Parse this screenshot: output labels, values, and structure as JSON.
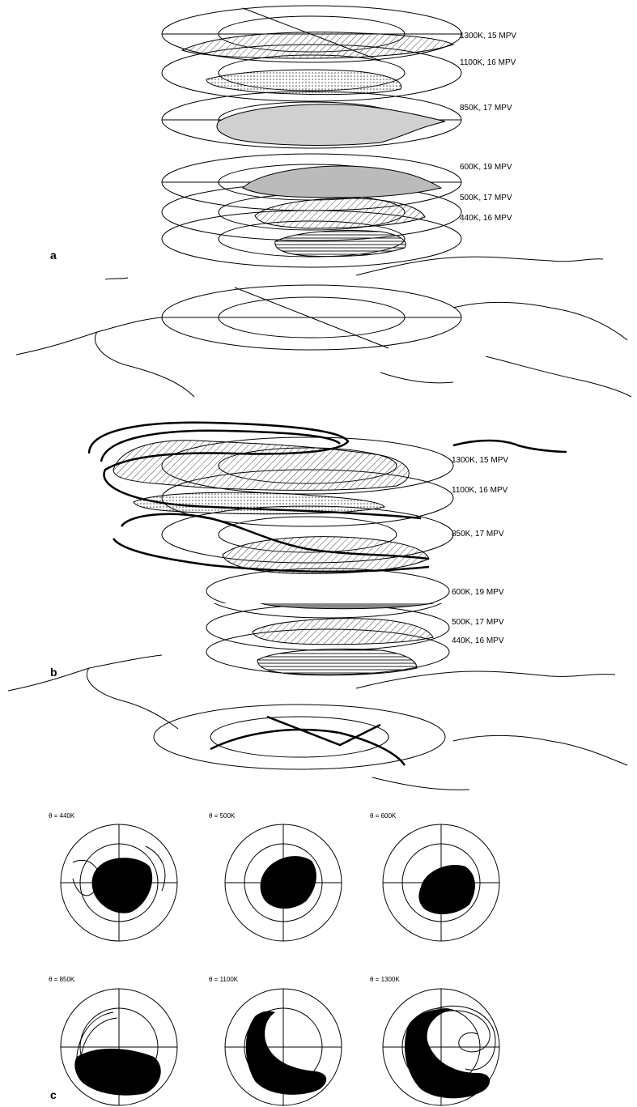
{
  "panel_a": {
    "label": "a",
    "layers": [
      {
        "text": "1300K, 15 MPV"
      },
      {
        "text": "1100K, 16 MPV"
      },
      {
        "text": "850K, 17 MPV"
      },
      {
        "text": "600K, 19 MPV"
      },
      {
        "text": "500K, 17 MPV"
      },
      {
        "text": "440K, 16 MPV"
      }
    ]
  },
  "panel_b": {
    "label": "b",
    "layers": [
      {
        "text": "1300K, 15 MPV"
      },
      {
        "text": "1100K, 16 MPV"
      },
      {
        "text": "850K, 17 MPV"
      },
      {
        "text": "600K, 19 MPV"
      },
      {
        "text": "500K, 17 MPV"
      },
      {
        "text": "440K, 16 MPV"
      }
    ]
  },
  "panel_c": {
    "label": "c",
    "maps": [
      {
        "title": "θ = 440K"
      },
      {
        "title": "θ = 500K"
      },
      {
        "title": "θ = 600K"
      },
      {
        "title": "θ = 850K"
      },
      {
        "title": "θ = 1100K"
      },
      {
        "title": "θ = 1300K"
      }
    ]
  }
}
